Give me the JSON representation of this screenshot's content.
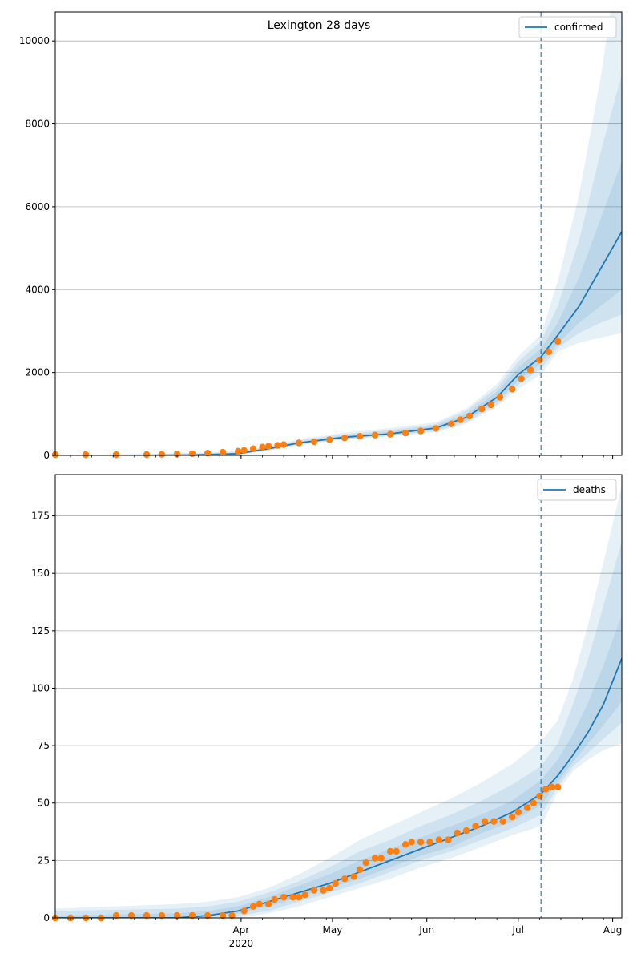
{
  "chart_data": {
    "title": "Lexington 28 days",
    "x_domain_days": [
      0,
      186
    ],
    "forecast_start_day": 159.5,
    "x_ticks": [
      {
        "day": 61,
        "label": "Apr",
        "sublabel": "2020"
      },
      {
        "day": 91,
        "label": "May"
      },
      {
        "day": 122,
        "label": "Jun"
      },
      {
        "day": 152,
        "label": "Jul"
      },
      {
        "day": 183,
        "label": "Aug"
      }
    ],
    "panels": [
      {
        "id": "confirmed",
        "type": "line",
        "series_name": "confirmed",
        "legend_label": "confirmed",
        "ylim": [
          0,
          10700
        ],
        "y_ticks": [
          0,
          2000,
          4000,
          6000,
          8000,
          10000
        ],
        "median": {
          "x": [
            0,
            25,
            45,
            60,
            70,
            80,
            95,
            110,
            125,
            135,
            145,
            152,
            159.5,
            165,
            172,
            179,
            186
          ],
          "y": [
            0,
            0,
            10,
            40,
            160,
            300,
            440,
            520,
            660,
            920,
            1400,
            1950,
            2380,
            2900,
            3600,
            4500,
            5400
          ]
        },
        "bands": [
          {
            "lo_y": [
              0,
              0,
              0,
              20,
              110,
              250,
              380,
              460,
              560,
              760,
              1180,
              1600,
              1960,
              2500,
              2720,
              2840,
              2950
            ],
            "hi_y": [
              0,
              30,
              60,
              100,
              220,
              390,
              550,
              660,
              800,
              1130,
              1720,
              2390,
              2920,
              4200,
              6300,
              9100,
              12500
            ]
          },
          {
            "lo_y": [
              0,
              0,
              0,
              25,
              125,
              265,
              395,
              475,
              585,
              795,
              1230,
              1700,
              2100,
              2600,
              2950,
              3200,
              3400
            ],
            "hi_y": [
              0,
              25,
              45,
              80,
              200,
              360,
              510,
              610,
              755,
              1080,
              1630,
              2260,
              2760,
              3600,
              5200,
              7300,
              9200
            ]
          },
          {
            "lo_y": [
              0,
              0,
              5,
              30,
              140,
              280,
              415,
              495,
              620,
              850,
              1300,
              1800,
              2220,
              2700,
              3200,
              3600,
              4000
            ],
            "hi_y": [
              0,
              15,
              25,
              60,
              180,
              330,
              480,
              570,
              710,
              1000,
              1530,
              2120,
              2580,
              3200,
              4300,
              5700,
              7100
            ]
          }
        ],
        "observed": {
          "x": [
            0,
            10,
            20,
            30,
            35,
            40,
            45,
            50,
            55,
            60,
            62,
            65,
            68,
            70,
            73,
            75,
            80,
            85,
            90,
            95,
            100,
            105,
            110,
            115,
            120,
            125,
            130,
            133,
            136,
            140,
            143,
            146,
            150,
            153,
            156,
            159,
            162,
            165
          ],
          "y": [
            20,
            20,
            20,
            20,
            25,
            30,
            40,
            55,
            75,
            100,
            120,
            160,
            200,
            220,
            240,
            260,
            300,
            330,
            380,
            420,
            460,
            490,
            510,
            540,
            590,
            650,
            760,
            860,
            950,
            1120,
            1220,
            1400,
            1600,
            1850,
            2060,
            2300,
            2500,
            2750
          ]
        }
      },
      {
        "id": "deaths",
        "type": "line",
        "series_name": "deaths",
        "legend_label": "deaths",
        "ylim": [
          0,
          193
        ],
        "y_ticks": [
          0,
          25,
          50,
          75,
          100,
          125,
          150,
          175
        ],
        "median": {
          "x": [
            0,
            40,
            50,
            60,
            70,
            80,
            90,
            100,
            110,
            120,
            130,
            140,
            150,
            159.5,
            165,
            170,
            175,
            180,
            186
          ],
          "y": [
            0,
            0,
            1,
            3,
            7,
            11,
            15,
            20,
            25,
            30,
            35,
            40,
            46,
            54,
            62,
            71,
            81,
            93,
            113
          ]
        },
        "bands": [
          {
            "lo_y": [
              0,
              0,
              0,
              0,
              2,
              5,
              9,
              13,
              17,
              22,
              26,
              31,
              36,
              40,
              55,
              64,
              69,
              73,
              76
            ],
            "hi_y": [
              4,
              6,
              7,
              9,
              13,
              19,
              26,
              34,
              40,
              46,
              52,
              59,
              67,
              77,
              86,
              104,
              128,
              155,
              188
            ]
          },
          {
            "lo_y": [
              0,
              0,
              0,
              1,
              3,
              7,
              11,
              15,
              20,
              25,
              29,
              34,
              39,
              45,
              57,
              66,
              72,
              78,
              85
            ],
            "hi_y": [
              3,
              4,
              5,
              7,
              11,
              16,
              22,
              29,
              34,
              40,
              45,
              51,
              58,
              66,
              76,
              93,
              113,
              136,
              164
            ]
          },
          {
            "lo_y": [
              0,
              0,
              1,
              2,
              5,
              9,
              13,
              17,
              22,
              27,
              31,
              37,
              42,
              49,
              59,
              68,
              76,
              84,
              94
            ],
            "hi_y": [
              1,
              2,
              3,
              5,
              9,
              14,
              19,
              25,
              30,
              35,
              40,
              45,
              51,
              60,
              69,
              80,
              94,
              110,
              132
            ]
          }
        ],
        "observed": {
          "x": [
            0,
            5,
            10,
            15,
            20,
            25,
            30,
            35,
            40,
            45,
            50,
            55,
            58,
            62,
            65,
            67,
            70,
            72,
            75,
            78,
            80,
            82,
            85,
            88,
            90,
            92,
            95,
            98,
            100,
            102,
            105,
            107,
            110,
            112,
            115,
            117,
            120,
            123,
            126,
            129,
            132,
            135,
            138,
            141,
            144,
            147,
            150,
            152,
            155,
            157,
            159,
            161,
            163,
            165
          ],
          "y": [
            0,
            0,
            0,
            0,
            1,
            1,
            1,
            1,
            1,
            1,
            1,
            1,
            1,
            3,
            5,
            6,
            6,
            8,
            9,
            9,
            9,
            10,
            12,
            12,
            13,
            15,
            17,
            18,
            21,
            24,
            26,
            26,
            29,
            29,
            32,
            33,
            33,
            33,
            34,
            34,
            37,
            38,
            40,
            42,
            42,
            42,
            44,
            46,
            48,
            50,
            53,
            56,
            57,
            57
          ]
        }
      }
    ],
    "colors": {
      "line": "#1f77b4",
      "band": "#1f77b4",
      "observed": "#ff7f0e",
      "grid": "#b0b0b0",
      "forecast_line": "#1f77b4"
    }
  }
}
